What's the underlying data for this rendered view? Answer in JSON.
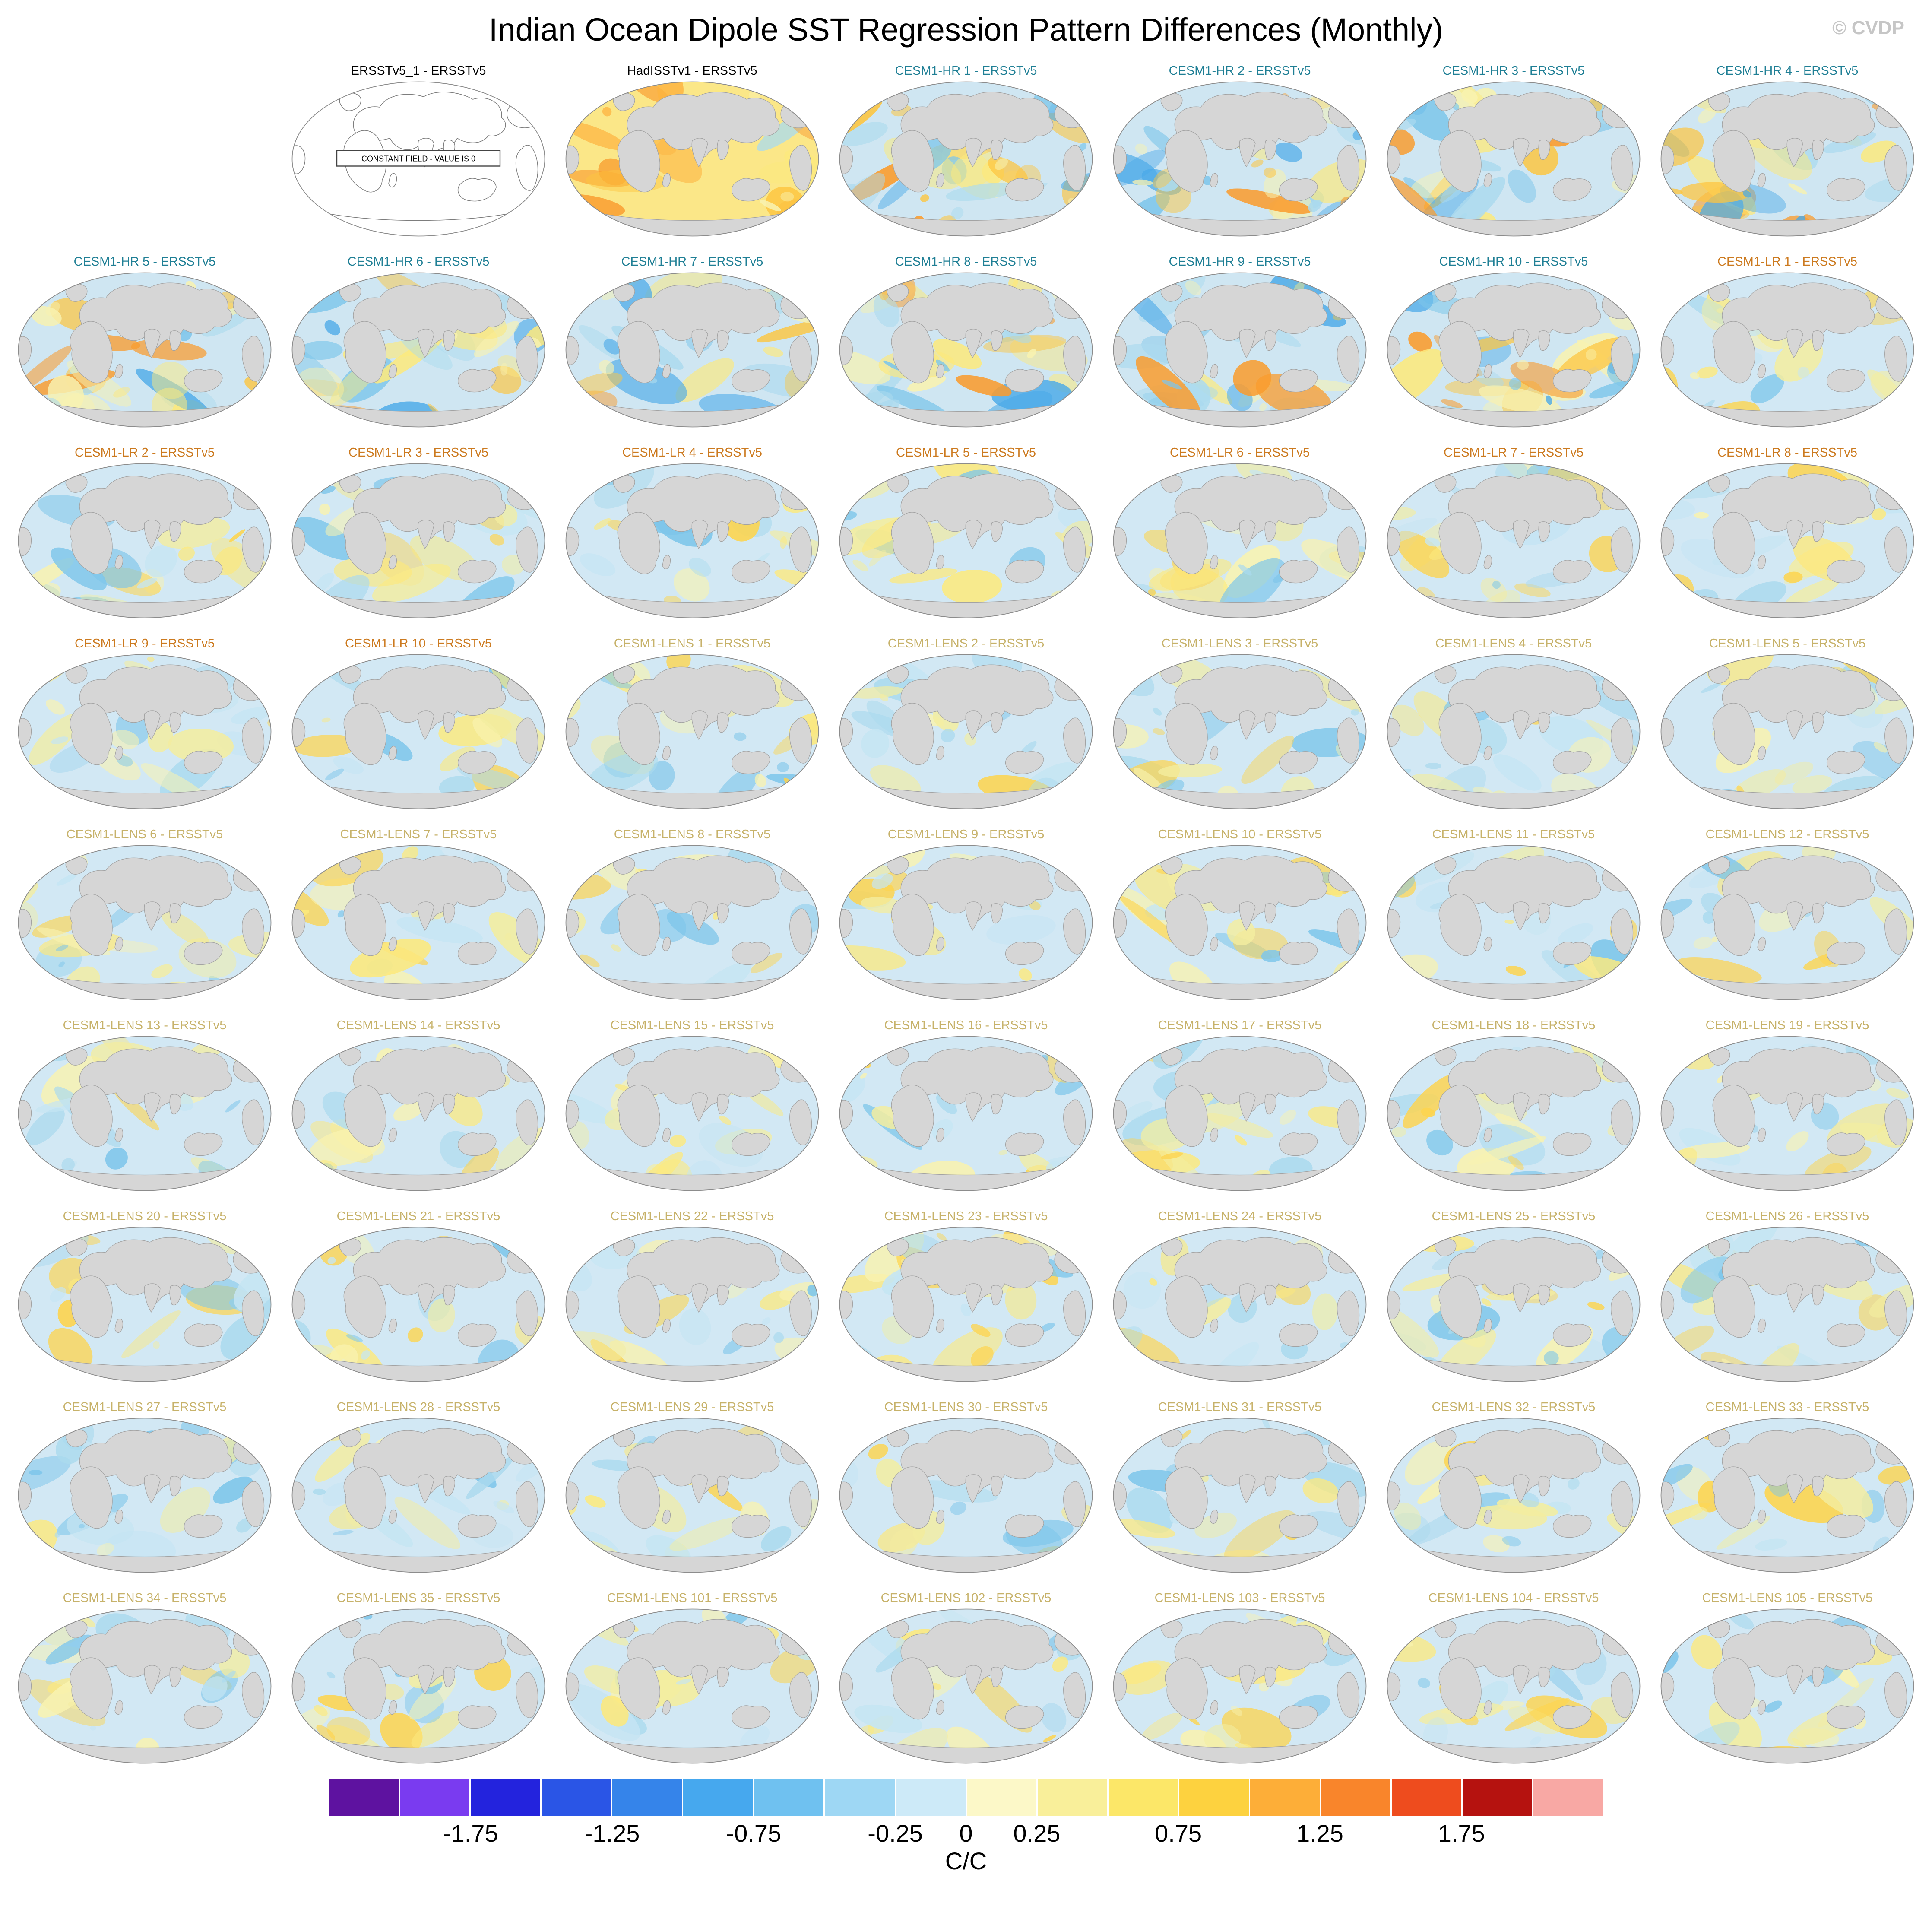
{
  "title": "Indian Ocean Dipole SST Regression Pattern Differences (Monthly)",
  "watermark": "© CVDP",
  "constant_field_note": "CONSTANT FIELD - VALUE IS 0",
  "group_colors": {
    "obs": "#000000",
    "hr": "#1f7f95",
    "lr": "#cc7a1f",
    "lens": "#c7b26a"
  },
  "map_style": {
    "land": "#d6d6d6",
    "coast": "#a3a3a3",
    "outline": "#8c8c8c",
    "palettes": {
      "soft": {
        "base": "#d2e8f4",
        "blobs": [
          "#f8f2b0",
          "#fce97e",
          "#abdaee",
          "#7ec6ea",
          "#fdd44f",
          "#c5e5f3",
          "#f3eda0"
        ]
      },
      "hr": {
        "base": "#cfe6f2",
        "blobs": [
          "#fce97e",
          "#fdc53f",
          "#f99c2f",
          "#7ec6ea",
          "#4aa9e8",
          "#f8f2b0",
          "#abdaee"
        ]
      },
      "had": {
        "base": "#fbe788",
        "blobs": [
          "#fdc53f",
          "#f99c2f",
          "#fce97e",
          "#f8f2b0",
          "#abdaee",
          "#fdb340"
        ]
      },
      "constant": {
        "base": "#ffffff",
        "blobs": []
      }
    }
  },
  "panels": [
    {
      "label": "ERSSTv5_1 - ERSSTv5",
      "group": "obs",
      "palette": "constant"
    },
    {
      "label": "HadISSTv1 - ERSSTv5",
      "group": "obs",
      "palette": "had"
    },
    {
      "label": "CESM1-HR 1 - ERSSTv5",
      "group": "hr",
      "palette": "hr"
    },
    {
      "label": "CESM1-HR 2 - ERSSTv5",
      "group": "hr",
      "palette": "hr"
    },
    {
      "label": "CESM1-HR 3 - ERSSTv5",
      "group": "hr",
      "palette": "hr"
    },
    {
      "label": "CESM1-HR 4 - ERSSTv5",
      "group": "hr",
      "palette": "hr"
    },
    {
      "label": "CESM1-HR 5 - ERSSTv5",
      "group": "hr",
      "palette": "hr"
    },
    {
      "label": "CESM1-HR 6 - ERSSTv5",
      "group": "hr",
      "palette": "hr"
    },
    {
      "label": "CESM1-HR 7 - ERSSTv5",
      "group": "hr",
      "palette": "hr"
    },
    {
      "label": "CESM1-HR 8 - ERSSTv5",
      "group": "hr",
      "palette": "hr"
    },
    {
      "label": "CESM1-HR 9 - ERSSTv5",
      "group": "hr",
      "palette": "hr"
    },
    {
      "label": "CESM1-HR 10 - ERSSTv5",
      "group": "hr",
      "palette": "hr"
    },
    {
      "label": "CESM1-LR 1 - ERSSTv5",
      "group": "lr",
      "palette": "soft"
    },
    {
      "label": "CESM1-LR 2 - ERSSTv5",
      "group": "lr",
      "palette": "soft"
    },
    {
      "label": "CESM1-LR 3 - ERSSTv5",
      "group": "lr",
      "palette": "soft"
    },
    {
      "label": "CESM1-LR 4 - ERSSTv5",
      "group": "lr",
      "palette": "soft"
    },
    {
      "label": "CESM1-LR 5 - ERSSTv5",
      "group": "lr",
      "palette": "soft"
    },
    {
      "label": "CESM1-LR 6 - ERSSTv5",
      "group": "lr",
      "palette": "soft"
    },
    {
      "label": "CESM1-LR 7 - ERSSTv5",
      "group": "lr",
      "palette": "soft"
    },
    {
      "label": "CESM1-LR 8 - ERSSTv5",
      "group": "lr",
      "palette": "soft"
    },
    {
      "label": "CESM1-LR 9 - ERSSTv5",
      "group": "lr",
      "palette": "soft"
    },
    {
      "label": "CESM1-LR 10 - ERSSTv5",
      "group": "lr",
      "palette": "soft"
    },
    {
      "label": "CESM1-LENS 1 - ERSSTv5",
      "group": "lens",
      "palette": "soft"
    },
    {
      "label": "CESM1-LENS 2 - ERSSTv5",
      "group": "lens",
      "palette": "soft"
    },
    {
      "label": "CESM1-LENS 3 - ERSSTv5",
      "group": "lens",
      "palette": "soft"
    },
    {
      "label": "CESM1-LENS 4 - ERSSTv5",
      "group": "lens",
      "palette": "soft"
    },
    {
      "label": "CESM1-LENS 5 - ERSSTv5",
      "group": "lens",
      "palette": "soft"
    },
    {
      "label": "CESM1-LENS 6 - ERSSTv5",
      "group": "lens",
      "palette": "soft"
    },
    {
      "label": "CESM1-LENS 7 - ERSSTv5",
      "group": "lens",
      "palette": "soft"
    },
    {
      "label": "CESM1-LENS 8 - ERSSTv5",
      "group": "lens",
      "palette": "soft"
    },
    {
      "label": "CESM1-LENS 9 - ERSSTv5",
      "group": "lens",
      "palette": "soft"
    },
    {
      "label": "CESM1-LENS 10 - ERSSTv5",
      "group": "lens",
      "palette": "soft"
    },
    {
      "label": "CESM1-LENS 11 - ERSSTv5",
      "group": "lens",
      "palette": "soft"
    },
    {
      "label": "CESM1-LENS 12 - ERSSTv5",
      "group": "lens",
      "palette": "soft"
    },
    {
      "label": "CESM1-LENS 13 - ERSSTv5",
      "group": "lens",
      "palette": "soft"
    },
    {
      "label": "CESM1-LENS 14 - ERSSTv5",
      "group": "lens",
      "palette": "soft"
    },
    {
      "label": "CESM1-LENS 15 - ERSSTv5",
      "group": "lens",
      "palette": "soft"
    },
    {
      "label": "CESM1-LENS 16 - ERSSTv5",
      "group": "lens",
      "palette": "soft"
    },
    {
      "label": "CESM1-LENS 17 - ERSSTv5",
      "group": "lens",
      "palette": "soft"
    },
    {
      "label": "CESM1-LENS 18 - ERSSTv5",
      "group": "lens",
      "palette": "soft"
    },
    {
      "label": "CESM1-LENS 19 - ERSSTv5",
      "group": "lens",
      "palette": "soft"
    },
    {
      "label": "CESM1-LENS 20 - ERSSTv5",
      "group": "lens",
      "palette": "soft"
    },
    {
      "label": "CESM1-LENS 21 - ERSSTv5",
      "group": "lens",
      "palette": "soft"
    },
    {
      "label": "CESM1-LENS 22 - ERSSTv5",
      "group": "lens",
      "palette": "soft"
    },
    {
      "label": "CESM1-LENS 23 - ERSSTv5",
      "group": "lens",
      "palette": "soft"
    },
    {
      "label": "CESM1-LENS 24 - ERSSTv5",
      "group": "lens",
      "palette": "soft"
    },
    {
      "label": "CESM1-LENS 25 - ERSSTv5",
      "group": "lens",
      "palette": "soft"
    },
    {
      "label": "CESM1-LENS 26 - ERSSTv5",
      "group": "lens",
      "palette": "soft"
    },
    {
      "label": "CESM1-LENS 27 - ERSSTv5",
      "group": "lens",
      "palette": "soft"
    },
    {
      "label": "CESM1-LENS 28 - ERSSTv5",
      "group": "lens",
      "palette": "soft"
    },
    {
      "label": "CESM1-LENS 29 - ERSSTv5",
      "group": "lens",
      "palette": "soft"
    },
    {
      "label": "CESM1-LENS 30 - ERSSTv5",
      "group": "lens",
      "palette": "soft"
    },
    {
      "label": "CESM1-LENS 31 - ERSSTv5",
      "group": "lens",
      "palette": "soft"
    },
    {
      "label": "CESM1-LENS 32 - ERSSTv5",
      "group": "lens",
      "palette": "soft"
    },
    {
      "label": "CESM1-LENS 33 - ERSSTv5",
      "group": "lens",
      "palette": "soft"
    },
    {
      "label": "CESM1-LENS 34 - ERSSTv5",
      "group": "lens",
      "palette": "soft"
    },
    {
      "label": "CESM1-LENS 35 - ERSSTv5",
      "group": "lens",
      "palette": "soft"
    },
    {
      "label": "CESM1-LENS 101 - ERSSTv5",
      "group": "lens",
      "palette": "soft"
    },
    {
      "label": "CESM1-LENS 102 - ERSSTv5",
      "group": "lens",
      "palette": "soft"
    },
    {
      "label": "CESM1-LENS 103 - ERSSTv5",
      "group": "lens",
      "palette": "soft"
    },
    {
      "label": "CESM1-LENS 104 - ERSSTv5",
      "group": "lens",
      "palette": "soft"
    },
    {
      "label": "CESM1-LENS 105 - ERSSTv5",
      "group": "lens",
      "palette": "soft"
    }
  ],
  "colorbar": {
    "range_min": -2,
    "range_max": 2,
    "step": 0.25,
    "unit_label": "C/C",
    "segment_colors": [
      "#5e12a0",
      "#7a3bf0",
      "#2323dd",
      "#2a55e6",
      "#3584ea",
      "#46a8ee",
      "#6fc1f0",
      "#9ed7f4",
      "#cdeaf8",
      "#fcf8c8",
      "#f9ef9a",
      "#fce768",
      "#fdd23f",
      "#fdae38",
      "#f9852b",
      "#ee4c1e",
      "#b5120f",
      "#f8a8a4"
    ],
    "ticks": [
      {
        "label": "-1.75",
        "value": -1.75
      },
      {
        "label": "-1.25",
        "value": -1.25
      },
      {
        "label": "-0.75",
        "value": -0.75
      },
      {
        "label": "-0.25",
        "value": -0.25
      },
      {
        "label": "0",
        "value": 0
      },
      {
        "label": "0.25",
        "value": 0.25
      },
      {
        "label": "0.75",
        "value": 0.75
      },
      {
        "label": "1.25",
        "value": 1.25
      },
      {
        "label": "1.75",
        "value": 1.75
      }
    ]
  }
}
